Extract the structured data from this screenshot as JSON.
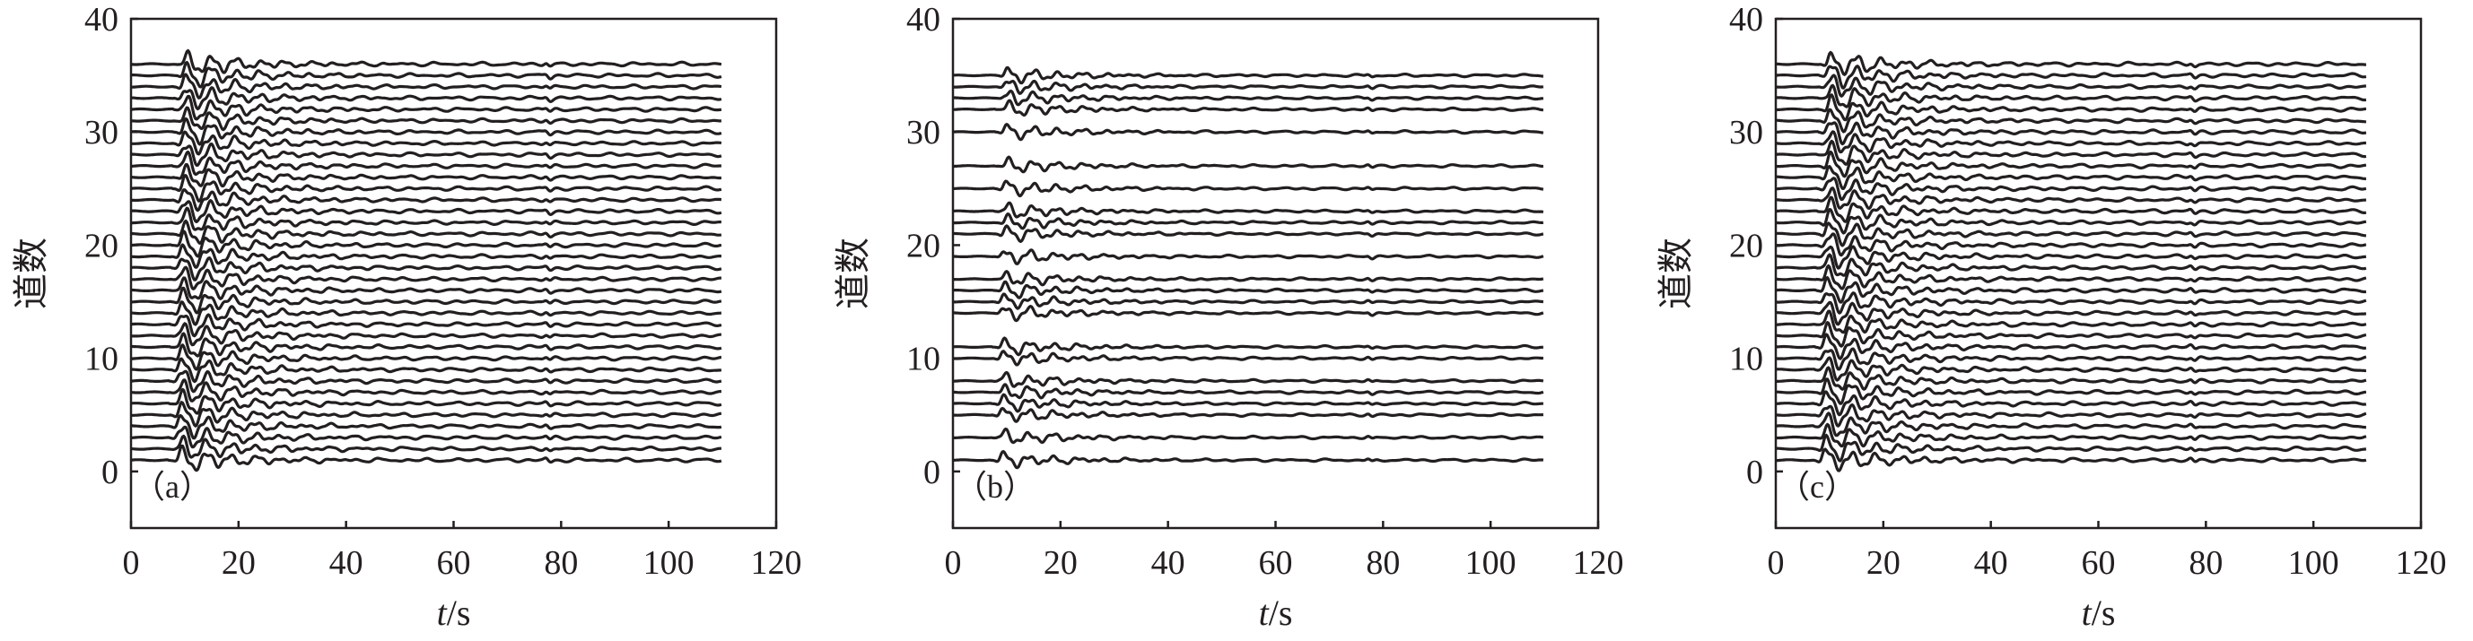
{
  "chart_data": [
    {
      "type": "line",
      "panel_label": "（a）",
      "xlabel_italic": "t",
      "xlabel_unit": "/s",
      "ylabel": "道数",
      "xlim": [
        0,
        120
      ],
      "ylim": [
        -5,
        40
      ],
      "xticks": [
        "0",
        "20",
        "40",
        "60",
        "80",
        "100",
        "120"
      ],
      "yticks": [
        "0",
        "10",
        "20",
        "30",
        "40"
      ],
      "grid": false,
      "trace_time_range": [
        0,
        110
      ],
      "first_arrival_s": 9,
      "amplitude_scale": 1.0,
      "trace_offsets": [
        1,
        2,
        3,
        4,
        5,
        6,
        7,
        8,
        9,
        10,
        11,
        12,
        13,
        14,
        15,
        16,
        17,
        18,
        19,
        20,
        21,
        22,
        23,
        24,
        25,
        26,
        27,
        28,
        29,
        30,
        31,
        32,
        33,
        34,
        35,
        36
      ]
    },
    {
      "type": "line",
      "panel_label": "（b）",
      "xlabel_italic": "t",
      "xlabel_unit": "/s",
      "ylabel": "道数",
      "xlim": [
        0,
        120
      ],
      "ylim": [
        -5,
        40
      ],
      "xticks": [
        "0",
        "20",
        "40",
        "60",
        "80",
        "100",
        "120"
      ],
      "yticks": [
        "0",
        "10",
        "20",
        "30",
        "40"
      ],
      "grid": false,
      "trace_time_range": [
        0,
        110
      ],
      "first_arrival_s": 9,
      "amplitude_scale": 0.75,
      "trace_offsets": [
        1,
        3,
        5,
        6,
        7,
        8,
        10,
        11,
        14,
        15,
        16,
        17,
        19,
        21,
        22,
        23,
        25,
        27,
        30,
        32,
        33,
        34,
        35
      ]
    },
    {
      "type": "line",
      "panel_label": "（c）",
      "xlabel_italic": "t",
      "xlabel_unit": "/s",
      "ylabel": "道数",
      "xlim": [
        0,
        120
      ],
      "ylim": [
        -5,
        40
      ],
      "xticks": [
        "0",
        "20",
        "40",
        "60",
        "80",
        "100",
        "120"
      ],
      "yticks": [
        "0",
        "10",
        "20",
        "30",
        "40"
      ],
      "grid": false,
      "trace_time_range": [
        0,
        110
      ],
      "first_arrival_s": 9,
      "amplitude_scale": 1.0,
      "trace_offsets": [
        1,
        2,
        3,
        4,
        5,
        6,
        7,
        8,
        9,
        10,
        11,
        12,
        13,
        14,
        15,
        16,
        17,
        18,
        19,
        20,
        21,
        22,
        23,
        24,
        25,
        26,
        27,
        28,
        29,
        30,
        31,
        32,
        33,
        34,
        35,
        36
      ]
    }
  ]
}
